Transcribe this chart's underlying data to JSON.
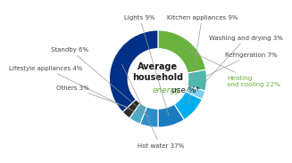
{
  "title_line1": "Average\nhousehold",
  "title_line2": "energy",
  "title_line3": " use %*",
  "segments": [
    {
      "label": "Heating\nand cooling 22%",
      "value": 22,
      "color": "#6ab23e"
    },
    {
      "label": "Refrigeration 7%",
      "value": 7,
      "color": "#4db8b0"
    },
    {
      "label": "Washing and drying 3%",
      "value": 3,
      "color": "#7dcfee"
    },
    {
      "label": "Kitchen appliances 9%",
      "value": 9,
      "color": "#00aeef"
    },
    {
      "label": "Lights 9%",
      "value": 9,
      "color": "#1a7bbf"
    },
    {
      "label": "Standby 6%",
      "value": 6,
      "color": "#2e8dc8"
    },
    {
      "label": "Lifestyle appliances 4%",
      "value": 4,
      "color": "#4bacc6"
    },
    {
      "label": "Others 3%",
      "value": 3,
      "color": "#2d2d2d"
    },
    {
      "label": "Hot water 37%",
      "value": 37,
      "color": "#003087"
    }
  ],
  "background_color": "#ffffff",
  "center_title_color": "#1a1a1a",
  "center_energy_color": "#6ab23e",
  "label_color": "#444444",
  "heating_label_color": "#6ab23e",
  "startangle": 90,
  "donut_width": 0.38
}
